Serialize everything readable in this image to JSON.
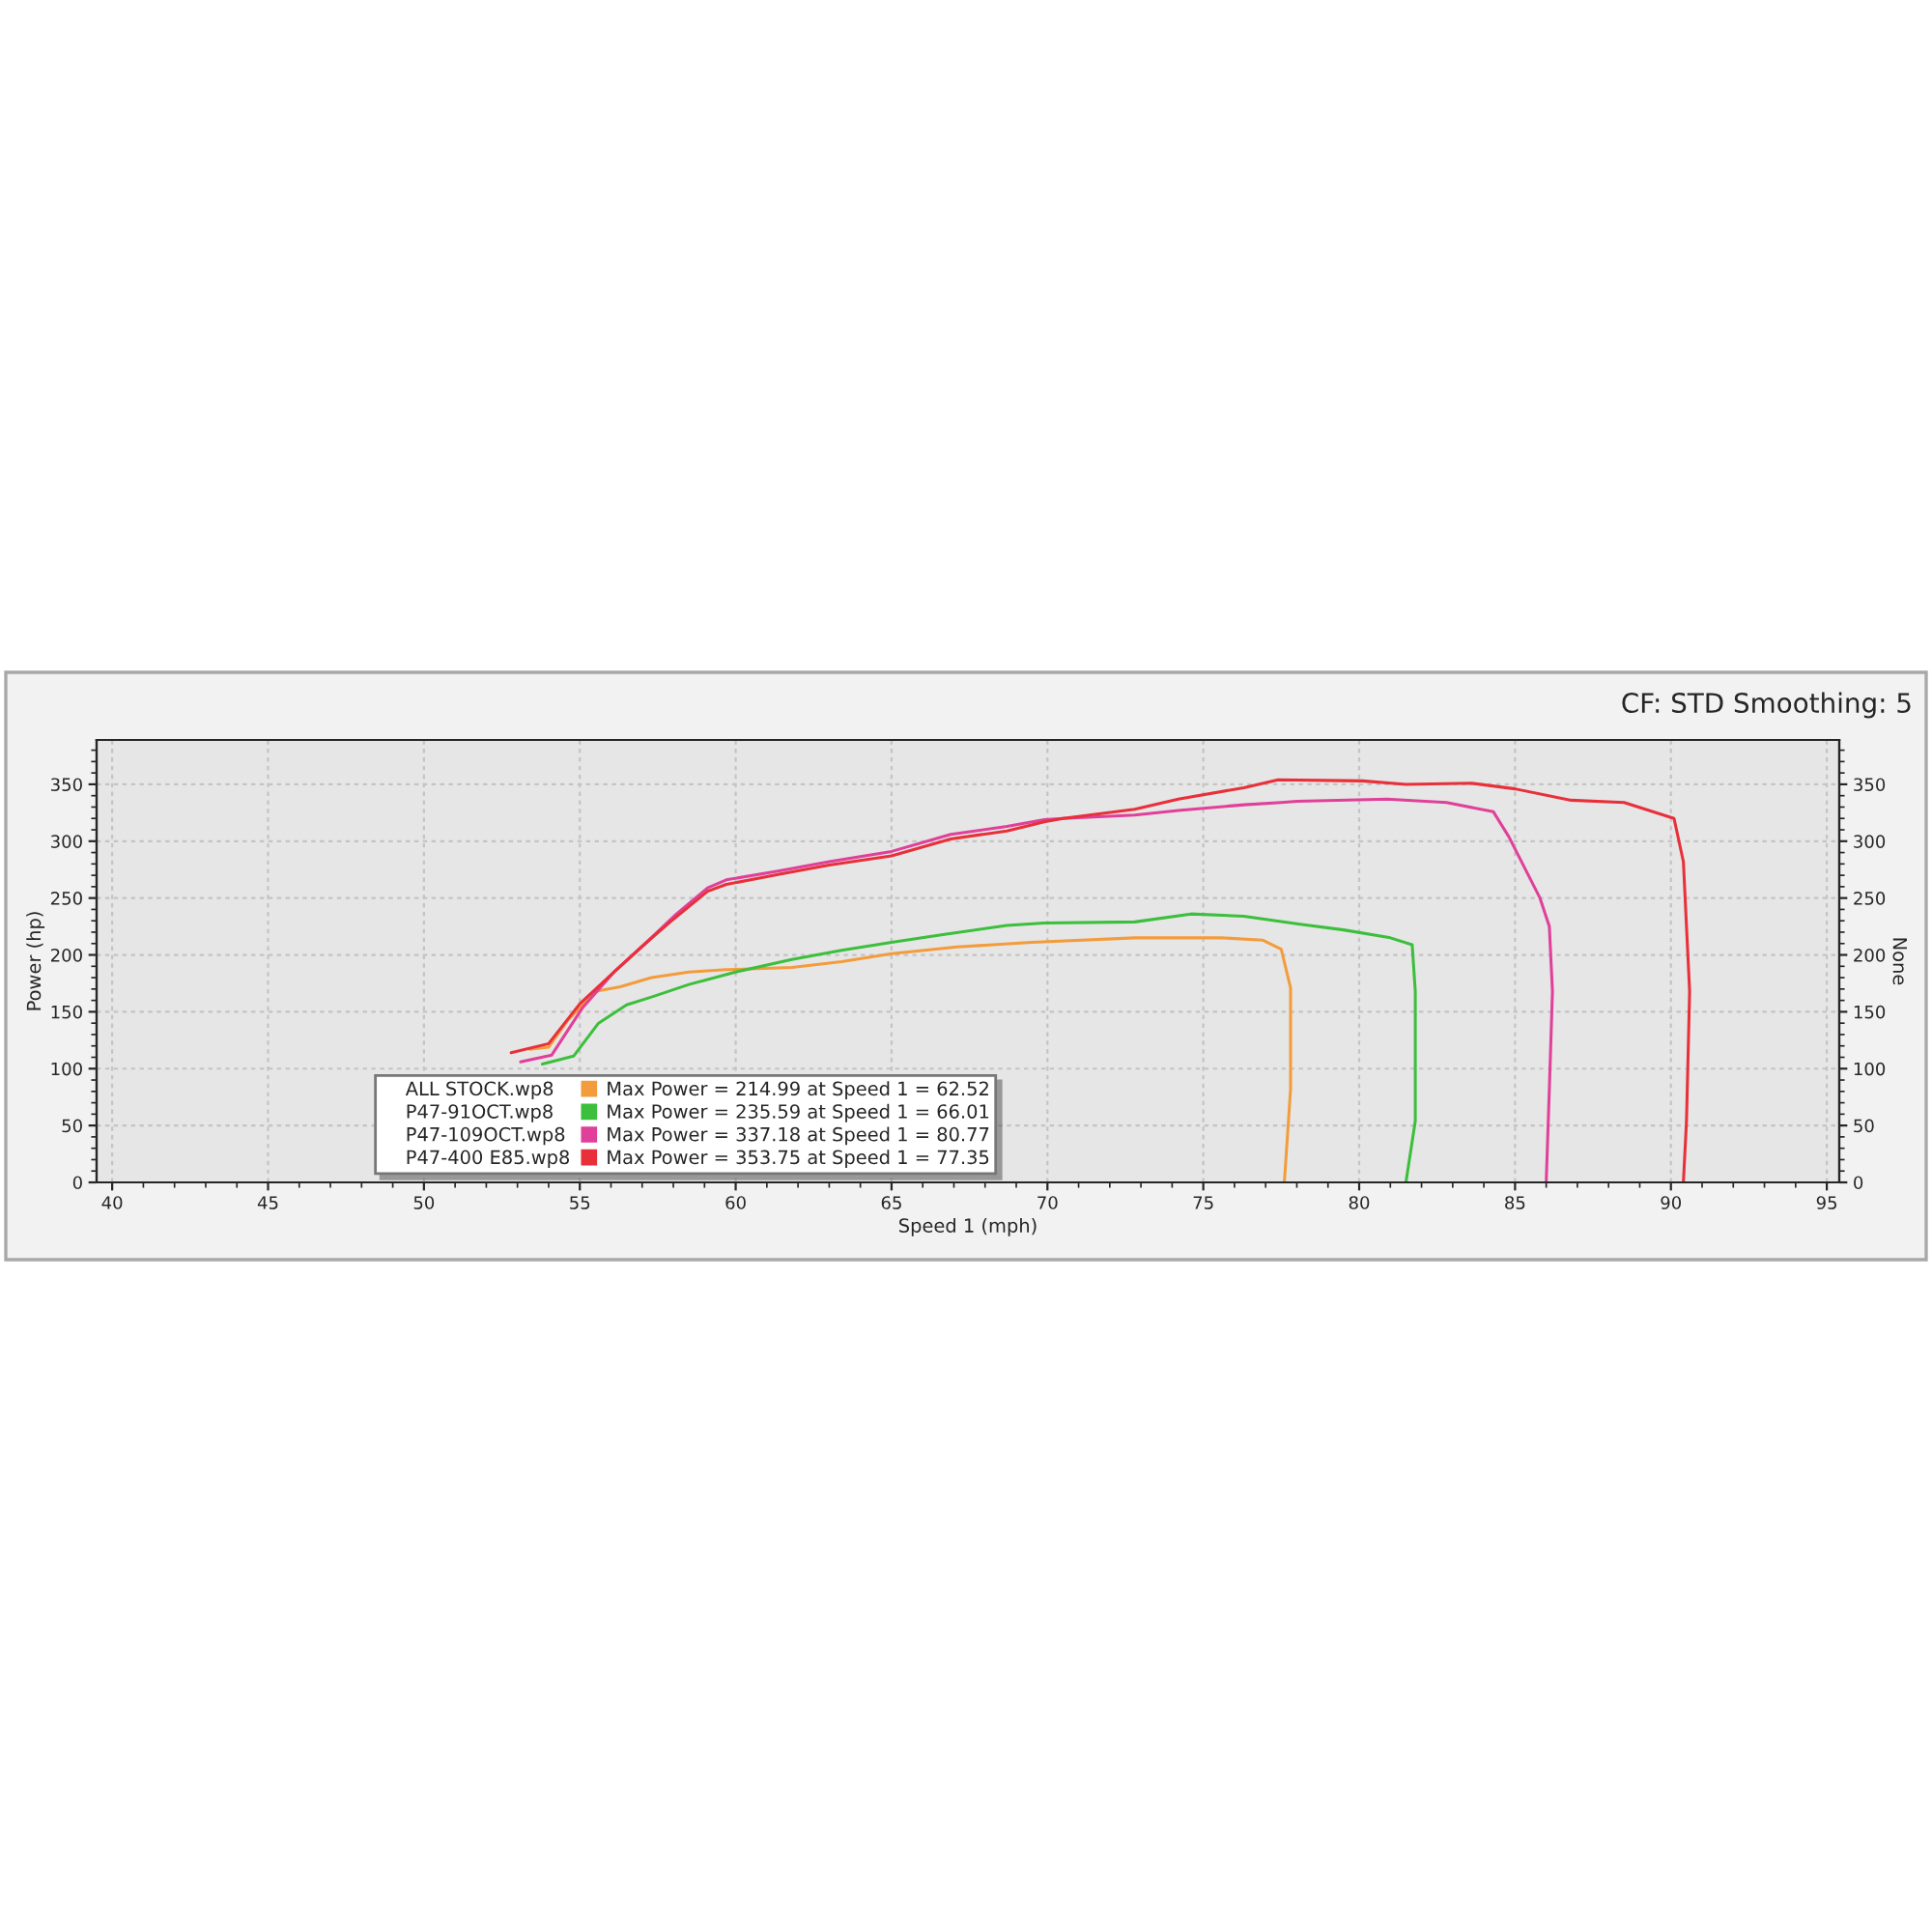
{
  "chart_data": {
    "type": "line",
    "xlabel": "Speed 1 (mph)",
    "ylabel": "Power (hp)",
    "y2label": "None",
    "annotations": [
      "CF: STD Smoothing: 5",
      "Max Power = 214.99 at Speed 1 = 62.52",
      "Max Power = 235.59 at Speed 1 = 66.01",
      "Max Power = 337.18 at Speed 1 = 80.77",
      "Max Power = 353.75 at Speed 1 = 77.35"
    ],
    "xlim": [
      39.5,
      95.4
    ],
    "xticks": [
      40,
      45,
      50,
      55,
      60,
      65,
      70,
      75,
      80,
      85,
      90,
      95
    ],
    "ylim": [
      0,
      389
    ],
    "yticks": [
      0,
      50,
      100,
      150,
      200,
      250,
      300,
      350
    ],
    "y2lim": [
      0,
      389
    ],
    "y2ticks": [
      0,
      50,
      100,
      150,
      200,
      250,
      300,
      350
    ],
    "grid": true,
    "legend": "bottom left",
    "marker": "none",
    "line_style": "solid",
    "series": [
      {
        "name": "ALL STOCK.wp8",
        "color": "#f39c3c",
        "x": [
          53.4,
          54.0,
          54.6,
          55.5,
          56.3,
          57.3,
          58.5,
          59.7,
          61.8,
          63.4,
          65.0,
          67.1,
          69.5,
          72.8,
          75.6,
          76.9,
          77.5,
          77.8,
          77.8,
          77.8,
          77.6
        ],
        "values": [
          117,
          119,
          142,
          168,
          172,
          180,
          185,
          187,
          189,
          194,
          201,
          207,
          211,
          215,
          215,
          213,
          205,
          171,
          120,
          82,
          0
        ]
      },
      {
        "name": "P47-91OCT.wp8",
        "color": "#3cbf3c",
        "x": [
          53.8,
          54.8,
          55.6,
          56.5,
          57.3,
          58.5,
          60.0,
          61.8,
          63.4,
          65.0,
          66.7,
          68.7,
          69.9,
          72.8,
          74.6,
          76.3,
          78.1,
          79.5,
          81.0,
          81.7,
          81.8,
          81.8,
          81.5
        ],
        "values": [
          104,
          111,
          140,
          156,
          163,
          174,
          185,
          196,
          204,
          211,
          218,
          226,
          228,
          229,
          236,
          234,
          227,
          222,
          215,
          209,
          168,
          54,
          0
        ]
      },
      {
        "name": "P47-109OCT.wp8",
        "color": "#e0409a",
        "x": [
          53.1,
          54.1,
          55.1,
          56.1,
          57.1,
          58.1,
          59.1,
          59.7,
          61.4,
          63.0,
          65.0,
          66.9,
          68.7,
          69.9,
          70.5,
          72.8,
          74.2,
          76.3,
          77.5,
          78.0,
          80.9,
          82.8,
          84.3,
          84.8,
          85.8,
          86.1,
          86.2,
          86.1,
          86.0
        ],
        "values": [
          106,
          112,
          154,
          185,
          210,
          236,
          259,
          266,
          274,
          282,
          291,
          306,
          313,
          319,
          320,
          323,
          327,
          332,
          334,
          335,
          337,
          334,
          326,
          304,
          250,
          225,
          168,
          82,
          0
        ]
      },
      {
        "name": "P47-400 E85.wp8",
        "color": "#e8303a",
        "x": [
          52.8,
          54.0,
          55.0,
          56.1,
          57.1,
          57.9,
          59.1,
          59.7,
          61.4,
          63.0,
          65.0,
          66.9,
          68.7,
          69.9,
          70.5,
          72.8,
          74.2,
          76.3,
          77.4,
          80.1,
          81.5,
          83.6,
          85.0,
          86.8,
          88.5,
          90.1,
          90.4,
          90.6,
          90.5,
          90.4
        ],
        "values": [
          114,
          122,
          157,
          185,
          210,
          229,
          256,
          262,
          271,
          279,
          287,
          302,
          309,
          317,
          320,
          328,
          337,
          347,
          354,
          353,
          350,
          351,
          346,
          336,
          334,
          320,
          282,
          168,
          54,
          0
        ]
      }
    ]
  }
}
